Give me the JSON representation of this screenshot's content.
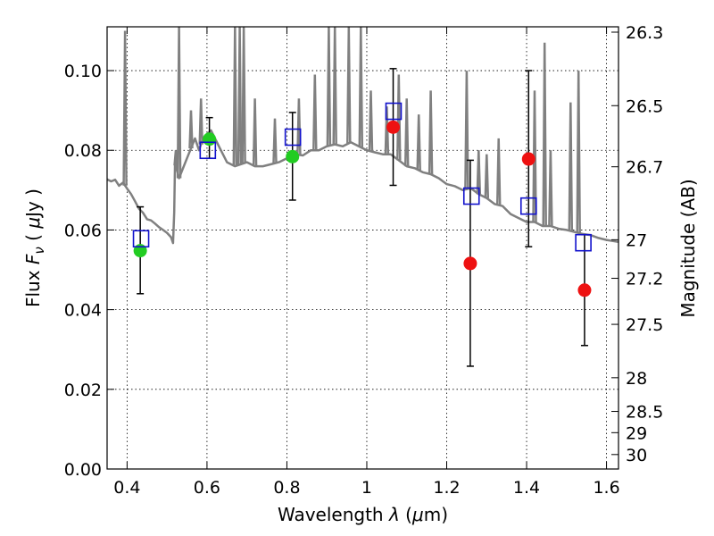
{
  "chart_data": {
    "type": "scatter",
    "xlabel": "Wavelength  λ (μm)",
    "ylabel_left": "Flux  F_ν  ( μJy )",
    "ylabel_right": "Magnitude (AB)",
    "xlim": [
      0.35,
      1.63
    ],
    "ylim": [
      0.0,
      0.111
    ],
    "x_ticks": [
      {
        "value": 0.4,
        "label": "0.4"
      },
      {
        "value": 0.6,
        "label": "0.6"
      },
      {
        "value": 0.8,
        "label": "0.8"
      },
      {
        "value": 1.0,
        "label": "1"
      },
      {
        "value": 1.2,
        "label": "1.2"
      },
      {
        "value": 1.4,
        "label": "1.4"
      },
      {
        "value": 1.6,
        "label": "1.6"
      }
    ],
    "y_ticks": [
      {
        "value": 0.0,
        "label": "0.00"
      },
      {
        "value": 0.02,
        "label": "0.02"
      },
      {
        "value": 0.04,
        "label": "0.04"
      },
      {
        "value": 0.06,
        "label": "0.06"
      },
      {
        "value": 0.08,
        "label": "0.08"
      },
      {
        "value": 0.1,
        "label": "0.10"
      }
    ],
    "right_ticks": [
      {
        "mag": 26.3,
        "label": "26.3"
      },
      {
        "mag": 26.5,
        "label": "26.5"
      },
      {
        "mag": 26.7,
        "label": "26.7"
      },
      {
        "mag": 27.0,
        "label": "27"
      },
      {
        "mag": 27.2,
        "label": "27.2"
      },
      {
        "mag": 27.5,
        "label": "27.5"
      },
      {
        "mag": 28.0,
        "label": "28"
      },
      {
        "mag": 28.5,
        "label": "28.5"
      },
      {
        "mag": 29.0,
        "label": "29"
      },
      {
        "mag": 30.0,
        "label": "30"
      }
    ],
    "grid": true,
    "colors": {
      "model": "#808080",
      "green_points": "#22cc22",
      "red_points": "#ee1111",
      "model_boxes": "#1111cc",
      "errorbars": "#000000"
    },
    "series": [
      {
        "kind": "line",
        "points": [
          [
            0.35,
            0.0727
          ],
          [
            0.36,
            0.0722
          ],
          [
            0.37,
            0.0726
          ],
          [
            0.38,
            0.0711
          ],
          [
            0.39,
            0.0719
          ],
          [
            0.4,
            0.0704
          ],
          [
            0.41,
            0.069
          ],
          [
            0.42,
            0.0672
          ],
          [
            0.43,
            0.0653
          ],
          [
            0.44,
            0.0643
          ],
          [
            0.45,
            0.0627
          ],
          [
            0.46,
            0.0624
          ],
          [
            0.47,
            0.0616
          ],
          [
            0.48,
            0.0607
          ],
          [
            0.49,
            0.06
          ],
          [
            0.5,
            0.0593
          ],
          [
            0.51,
            0.0582
          ],
          [
            0.515,
            0.0567
          ],
          [
            0.518,
            0.0645
          ],
          [
            0.52,
            0.077
          ],
          [
            0.53,
            0.073
          ],
          [
            0.55,
            0.078
          ],
          [
            0.57,
            0.083
          ],
          [
            0.58,
            0.08
          ],
          [
            0.59,
            0.083
          ],
          [
            0.6,
            0.084
          ],
          [
            0.61,
            0.085
          ],
          [
            0.62,
            0.083
          ],
          [
            0.63,
            0.081
          ],
          [
            0.64,
            0.079
          ],
          [
            0.65,
            0.077
          ],
          [
            0.67,
            0.076
          ],
          [
            0.7,
            0.077
          ],
          [
            0.72,
            0.076
          ],
          [
            0.74,
            0.076
          ],
          [
            0.76,
            0.0765
          ],
          [
            0.78,
            0.077
          ],
          [
            0.8,
            0.078
          ],
          [
            0.82,
            0.079
          ],
          [
            0.84,
            0.0787
          ],
          [
            0.86,
            0.08
          ],
          [
            0.88,
            0.08
          ],
          [
            0.9,
            0.081
          ],
          [
            0.92,
            0.0815
          ],
          [
            0.94,
            0.081
          ],
          [
            0.96,
            0.082
          ],
          [
            0.98,
            0.081
          ],
          [
            1.0,
            0.08
          ],
          [
            1.02,
            0.0795
          ],
          [
            1.04,
            0.079
          ],
          [
            1.06,
            0.079
          ],
          [
            1.08,
            0.0775
          ],
          [
            1.1,
            0.076
          ],
          [
            1.12,
            0.0755
          ],
          [
            1.14,
            0.0745
          ],
          [
            1.16,
            0.074
          ],
          [
            1.18,
            0.073
          ],
          [
            1.2,
            0.0715
          ],
          [
            1.22,
            0.071
          ],
          [
            1.24,
            0.07
          ],
          [
            1.26,
            0.0705
          ],
          [
            1.28,
            0.069
          ],
          [
            1.3,
            0.068
          ],
          [
            1.32,
            0.0665
          ],
          [
            1.34,
            0.066
          ],
          [
            1.36,
            0.064
          ],
          [
            1.38,
            0.063
          ],
          [
            1.4,
            0.062
          ],
          [
            1.42,
            0.062
          ],
          [
            1.44,
            0.061
          ],
          [
            1.46,
            0.061
          ],
          [
            1.48,
            0.0603
          ],
          [
            1.5,
            0.06
          ],
          [
            1.52,
            0.0595
          ],
          [
            1.54,
            0.059
          ],
          [
            1.56,
            0.0587
          ],
          [
            1.58,
            0.058
          ],
          [
            1.6,
            0.0575
          ],
          [
            1.63,
            0.057
          ]
        ],
        "spikes": [
          [
            0.395,
            0.11
          ],
          [
            0.522,
            0.08
          ],
          [
            0.53,
            0.111
          ],
          [
            0.56,
            0.09
          ],
          [
            0.585,
            0.093
          ],
          [
            0.67,
            0.111
          ],
          [
            0.682,
            0.111
          ],
          [
            0.692,
            0.111
          ],
          [
            0.72,
            0.093
          ],
          [
            0.77,
            0.088
          ],
          [
            0.83,
            0.093
          ],
          [
            0.87,
            0.099
          ],
          [
            0.905,
            0.111
          ],
          [
            0.92,
            0.111
          ],
          [
            0.955,
            0.111
          ],
          [
            0.985,
            0.111
          ],
          [
            1.01,
            0.095
          ],
          [
            1.05,
            0.091
          ],
          [
            1.08,
            0.099
          ],
          [
            1.1,
            0.093
          ],
          [
            1.13,
            0.089
          ],
          [
            1.16,
            0.095
          ],
          [
            1.25,
            0.1
          ],
          [
            1.28,
            0.08
          ],
          [
            1.3,
            0.079
          ],
          [
            1.33,
            0.083
          ],
          [
            1.42,
            0.095
          ],
          [
            1.445,
            0.107
          ],
          [
            1.46,
            0.08
          ],
          [
            1.51,
            0.092
          ],
          [
            1.53,
            0.1
          ]
        ]
      },
      {
        "kind": "errorbar-points",
        "color_key": "green_points",
        "points": [
          {
            "x": 0.433,
            "y": 0.0548,
            "yerr_low": 0.044,
            "yerr_high": 0.0658
          },
          {
            "x": 0.606,
            "y": 0.0828,
            "yerr_low": 0.078,
            "yerr_high": 0.0882
          },
          {
            "x": 0.814,
            "y": 0.0784,
            "yerr_low": 0.0675,
            "yerr_high": 0.0895
          }
        ]
      },
      {
        "kind": "errorbar-points",
        "color_key": "red_points",
        "points": [
          {
            "x": 1.066,
            "y": 0.0858,
            "yerr_low": 0.0712,
            "yerr_high": 0.1005
          },
          {
            "x": 1.259,
            "y": 0.0516,
            "yerr_low": 0.0258,
            "yerr_high": 0.0775
          },
          {
            "x": 1.405,
            "y": 0.0778,
            "yerr_low": 0.0558,
            "yerr_high": 0.1
          },
          {
            "x": 1.545,
            "y": 0.0449,
            "yerr_low": 0.031,
            "yerr_high": 0.0588
          }
        ]
      },
      {
        "kind": "model-boxes",
        "color_key": "model_boxes",
        "points": [
          {
            "x": 0.435,
            "y": 0.0578
          },
          {
            "x": 0.602,
            "y": 0.08
          },
          {
            "x": 0.815,
            "y": 0.0833
          },
          {
            "x": 1.067,
            "y": 0.0898
          },
          {
            "x": 1.262,
            "y": 0.0685
          },
          {
            "x": 1.405,
            "y": 0.066
          },
          {
            "x": 1.542,
            "y": 0.0568
          }
        ]
      }
    ]
  }
}
